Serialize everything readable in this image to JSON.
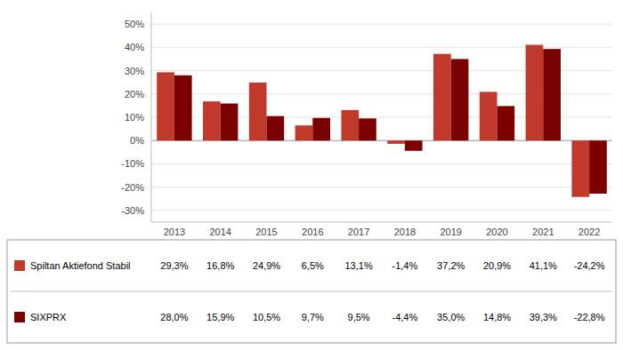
{
  "chart_data": {
    "type": "bar",
    "categories": [
      "2013",
      "2014",
      "2015",
      "2016",
      "2017",
      "2018",
      "2019",
      "2020",
      "2021",
      "2022"
    ],
    "series": [
      {
        "name": "Spiltan Aktiefond Stabil",
        "color": "#c0392b",
        "values": [
          29.3,
          16.8,
          24.9,
          6.5,
          13.1,
          -1.4,
          37.2,
          20.9,
          41.1,
          -24.2
        ],
        "value_labels": [
          "29,3%",
          "16,8%",
          "24,9%",
          "6,5%",
          "13,1%",
          "-1,4%",
          "37,2%",
          "20,9%",
          "41,1%",
          "-24,2%"
        ]
      },
      {
        "name": "SIXPRX",
        "color": "#7b0000",
        "values": [
          28.0,
          15.9,
          10.5,
          9.7,
          9.5,
          -4.4,
          35.0,
          14.8,
          39.3,
          -22.8
        ],
        "value_labels": [
          "28,0%",
          "15,9%",
          "10,5%",
          "9,7%",
          "9,5%",
          "-4,4%",
          "35,0%",
          "14,8%",
          "39,3%",
          "-22,8%"
        ]
      }
    ],
    "ylim": [
      -35,
      55
    ],
    "yticks": [
      {
        "value": -30,
        "label": "-30%"
      },
      {
        "value": -20,
        "label": "-20%"
      },
      {
        "value": -10,
        "label": "-10%"
      },
      {
        "value": 0,
        "label": "0%"
      },
      {
        "value": 10,
        "label": "10%"
      },
      {
        "value": 20,
        "label": "20%"
      },
      {
        "value": 30,
        "label": "30%"
      },
      {
        "value": 40,
        "label": "40%"
      },
      {
        "value": 50,
        "label": "50%"
      }
    ],
    "grid": true,
    "legend": "bottom"
  }
}
